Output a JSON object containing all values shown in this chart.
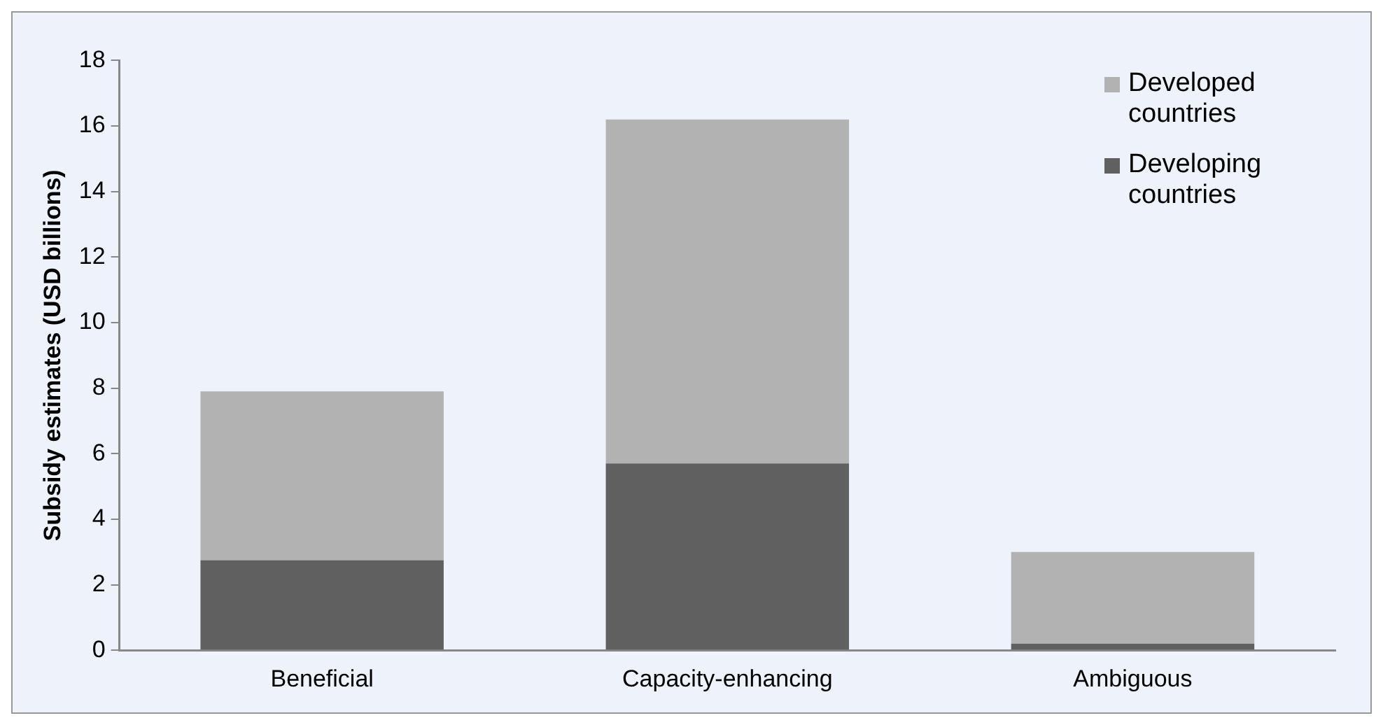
{
  "chart_data": {
    "type": "bar",
    "stacked": true,
    "ylabel": "Subsidy estimates (USD billions)",
    "categories": [
      "Beneficial",
      "Capacity-enhancing",
      "Ambiguous"
    ],
    "series": [
      {
        "name": "Developing countries",
        "color": "#606060",
        "values": [
          2.75,
          5.7,
          0.2
        ]
      },
      {
        "name": "Developed countries",
        "color": "#b2b2b2",
        "values": [
          5.15,
          10.5,
          2.8
        ]
      }
    ],
    "ylim": [
      0,
      18
    ],
    "yticks": [
      0,
      2,
      4,
      6,
      8,
      10,
      12,
      14,
      16,
      18
    ],
    "grid": false,
    "legend": "top right"
  }
}
